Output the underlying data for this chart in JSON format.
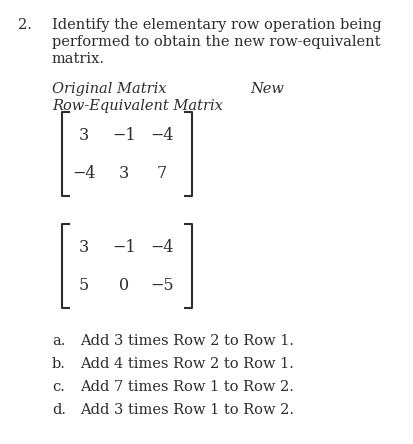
{
  "bg_color": "#ffffff",
  "text_color": "#2d2d2d",
  "title_num": "2.",
  "title_lines": [
    "Identify the elementary row operation being",
    "performed to obtain the new row-equivalent",
    "matrix."
  ],
  "label_original": "Original Matrix",
  "label_new": "New",
  "label_row_equiv": "Row-Equivalent Matrix",
  "matrix1": [
    [
      "3",
      "−1",
      "−4"
    ],
    [
      "−4",
      "3",
      "7"
    ]
  ],
  "matrix2": [
    [
      "3",
      "−1",
      "−4"
    ],
    [
      "5",
      "0",
      "−5"
    ]
  ],
  "options": [
    [
      "a.",
      "Add 3 times Row 2 to Row 1."
    ],
    [
      "b.",
      "Add 4 times Row 2 to Row 1."
    ],
    [
      "c.",
      "Add 7 times Row 1 to Row 2."
    ],
    [
      "d.",
      "Add 3 times Row 1 to Row 2."
    ]
  ],
  "fs_body": 10.5,
  "fs_matrix": 11.5,
  "fs_label": 10.5
}
